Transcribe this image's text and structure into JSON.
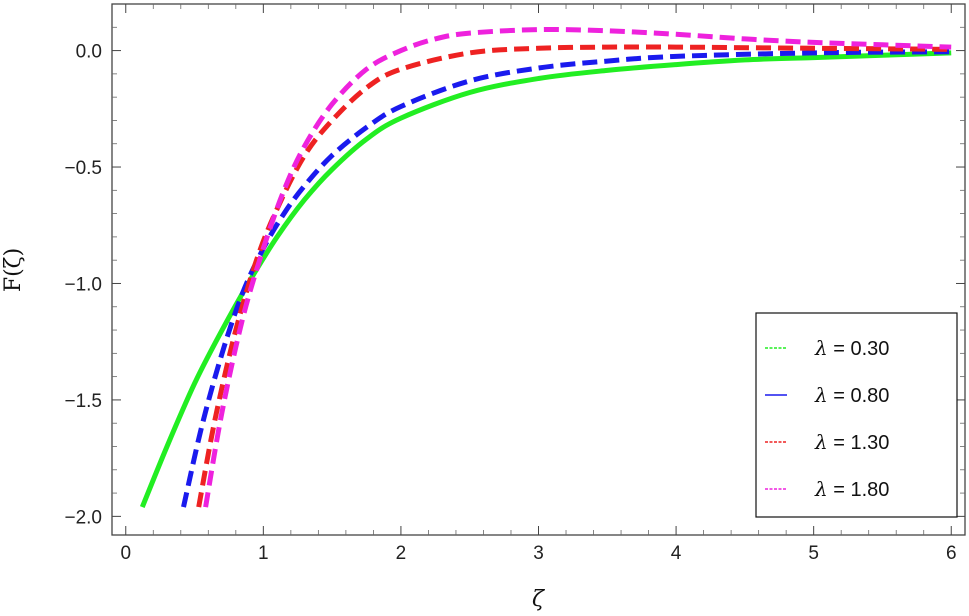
{
  "chart_data": {
    "type": "line",
    "title": "",
    "xlabel": "ζ",
    "ylabel": "F(ζ)",
    "xlim": [
      -0.1,
      6.1
    ],
    "ylim": [
      -2.08,
      0.2
    ],
    "xticks": [
      0,
      1,
      2,
      3,
      4,
      5,
      6
    ],
    "xtick_labels": [
      "0",
      "1",
      "2",
      "3",
      "4",
      "5",
      "6"
    ],
    "yticks": [
      -2.0,
      -1.5,
      -1.0,
      -0.5,
      0.0
    ],
    "ytick_labels": [
      "−2.0",
      "−1.5",
      "−1.0",
      "−0.5",
      "0.0"
    ],
    "grid": false,
    "legend_position": "bottom-right",
    "series": [
      {
        "name": "λ = 0.30",
        "symbol": "λ",
        "value_text": " = 0.30",
        "color": "#22ee22",
        "style": "solid",
        "x": [
          0.12,
          0.3,
          0.5,
          0.7,
          0.9,
          1.1,
          1.3,
          1.5,
          1.75,
          2.0,
          2.5,
          3.0,
          3.5,
          4.0,
          4.5,
          5.0,
          5.5,
          6.0
        ],
        "y": [
          -1.96,
          -1.7,
          -1.43,
          -1.2,
          -0.99,
          -0.8,
          -0.64,
          -0.51,
          -0.38,
          -0.29,
          -0.18,
          -0.12,
          -0.085,
          -0.06,
          -0.04,
          -0.03,
          -0.02,
          -0.01
        ]
      },
      {
        "name": "λ = 0.80",
        "symbol": "λ",
        "value_text": " = 0.80",
        "color": "#1a1aee",
        "style": "dashed",
        "x": [
          0.42,
          0.55,
          0.7,
          0.85,
          1.0,
          1.15,
          1.3,
          1.5,
          1.75,
          2.0,
          2.5,
          3.0,
          3.5,
          4.0,
          5.0,
          6.0
        ],
        "y": [
          -1.96,
          -1.62,
          -1.3,
          -1.04,
          -0.85,
          -0.7,
          -0.58,
          -0.45,
          -0.33,
          -0.24,
          -0.13,
          -0.075,
          -0.045,
          -0.025,
          -0.01,
          -0.005
        ]
      },
      {
        "name": "λ = 1.30",
        "symbol": "λ",
        "value_text": " = 1.30",
        "color": "#ee2222",
        "style": "dashed",
        "x": [
          0.53,
          0.65,
          0.8,
          0.95,
          1.1,
          1.3,
          1.5,
          1.75,
          2.0,
          2.5,
          3.0,
          3.5,
          4.0,
          5.0,
          6.0
        ],
        "y": [
          -1.96,
          -1.58,
          -1.2,
          -0.9,
          -0.68,
          -0.45,
          -0.3,
          -0.16,
          -0.08,
          -0.01,
          0.01,
          0.015,
          0.015,
          0.01,
          0.005
        ]
      },
      {
        "name": "λ = 1.80",
        "symbol": "λ",
        "value_text": " = 1.80",
        "color": "#ee22dd",
        "style": "dashed",
        "x": [
          0.58,
          0.7,
          0.85,
          1.0,
          1.15,
          1.3,
          1.5,
          1.75,
          2.0,
          2.25,
          2.5,
          3.0,
          3.5,
          4.0,
          4.5,
          5.0,
          5.5,
          6.0
        ],
        "y": [
          -1.96,
          -1.55,
          -1.15,
          -0.85,
          -0.6,
          -0.41,
          -0.23,
          -0.08,
          0.0,
          0.05,
          0.075,
          0.09,
          0.085,
          0.07,
          0.05,
          0.035,
          0.025,
          0.015
        ]
      }
    ]
  }
}
